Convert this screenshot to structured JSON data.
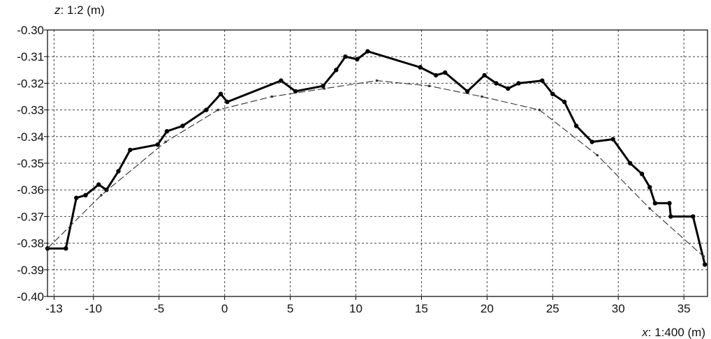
{
  "chart_data": {
    "type": "line",
    "title": "",
    "xlabel": {
      "var": "x",
      "rest": ": 1:400 (m)"
    },
    "ylabel": {
      "var": "z",
      "rest": ": 1:2 (m)"
    },
    "xlim": [
      -13.5,
      36.8
    ],
    "ylim": [
      -0.4,
      -0.3
    ],
    "grid": true,
    "x_ticks": [
      {
        "value": -13,
        "label": "-13"
      },
      {
        "value": -10,
        "label": "-10"
      },
      {
        "value": -5,
        "label": "-5"
      },
      {
        "value": 0,
        "label": "0"
      },
      {
        "value": 5,
        "label": "5"
      },
      {
        "value": 10,
        "label": "10"
      },
      {
        "value": 15,
        "label": "15"
      },
      {
        "value": 20,
        "label": "20"
      },
      {
        "value": 25,
        "label": "25"
      },
      {
        "value": 30,
        "label": "30"
      },
      {
        "value": 35,
        "label": "35"
      }
    ],
    "y_ticks": [
      {
        "value": -0.3,
        "label": "-0.30"
      },
      {
        "value": -0.31,
        "label": "-0.31"
      },
      {
        "value": -0.32,
        "label": "-0.32"
      },
      {
        "value": -0.33,
        "label": "-0.33"
      },
      {
        "value": -0.34,
        "label": "-0.34"
      },
      {
        "value": -0.35,
        "label": "-0.35"
      },
      {
        "value": -0.36,
        "label": "-0.36"
      },
      {
        "value": -0.37,
        "label": "-0.37"
      },
      {
        "value": -0.38,
        "label": "-0.38"
      },
      {
        "value": -0.39,
        "label": "-0.39"
      },
      {
        "value": -0.4,
        "label": "-0.40"
      }
    ],
    "series": [
      {
        "style": "solid-thick",
        "color": "#000000",
        "points": [
          [
            -13.5,
            -0.382
          ],
          [
            -12.1,
            -0.382
          ],
          [
            -11.3,
            -0.363
          ],
          [
            -10.6,
            -0.362
          ],
          [
            -9.6,
            -0.358
          ],
          [
            -9.0,
            -0.36
          ],
          [
            -8.1,
            -0.353
          ],
          [
            -7.2,
            -0.345
          ],
          [
            -5.1,
            -0.343
          ],
          [
            -4.4,
            -0.338
          ],
          [
            -3.2,
            -0.336
          ],
          [
            -1.4,
            -0.33
          ],
          [
            -0.3,
            -0.324
          ],
          [
            0.2,
            -0.327
          ],
          [
            4.3,
            -0.319
          ],
          [
            5.4,
            -0.323
          ],
          [
            7.5,
            -0.321
          ],
          [
            8.5,
            -0.315
          ],
          [
            9.2,
            -0.31
          ],
          [
            10.1,
            -0.311
          ],
          [
            10.9,
            -0.308
          ],
          [
            14.9,
            -0.314
          ],
          [
            16.1,
            -0.317
          ],
          [
            16.8,
            -0.316
          ],
          [
            18.5,
            -0.323
          ],
          [
            19.8,
            -0.317
          ],
          [
            20.7,
            -0.32
          ],
          [
            21.6,
            -0.322
          ],
          [
            22.4,
            -0.32
          ],
          [
            24.2,
            -0.319
          ],
          [
            25.0,
            -0.324
          ],
          [
            25.9,
            -0.327
          ],
          [
            26.8,
            -0.336
          ],
          [
            28.0,
            -0.342
          ],
          [
            29.6,
            -0.341
          ],
          [
            30.9,
            -0.35
          ],
          [
            31.8,
            -0.354
          ],
          [
            32.4,
            -0.359
          ],
          [
            32.8,
            -0.365
          ],
          [
            33.9,
            -0.365
          ],
          [
            34.0,
            -0.37
          ],
          [
            35.7,
            -0.37
          ],
          [
            36.6,
            -0.388
          ]
        ]
      },
      {
        "style": "dashed-thin",
        "color": "#333333",
        "points": [
          [
            -13.5,
            -0.382
          ],
          [
            -9.4,
            -0.362
          ],
          [
            -4.5,
            -0.342
          ],
          [
            -0.5,
            -0.33
          ],
          [
            3.6,
            -0.325
          ],
          [
            7.6,
            -0.322
          ],
          [
            11.6,
            -0.319
          ],
          [
            15.6,
            -0.321
          ],
          [
            19.6,
            -0.325
          ],
          [
            24.0,
            -0.33
          ],
          [
            28.4,
            -0.347
          ],
          [
            32.4,
            -0.367
          ],
          [
            36.5,
            -0.385
          ]
        ]
      }
    ]
  }
}
